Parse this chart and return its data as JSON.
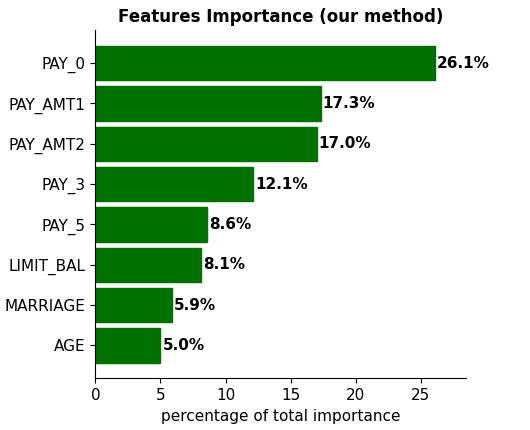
{
  "title": "Features Importance (our method)",
  "xlabel": "percentage of total importance",
  "categories": [
    "AGE",
    "MARRIAGE",
    "LIMIT_BAL",
    "PAY_5",
    "PAY_3",
    "PAY_AMT2",
    "PAY_AMT1",
    "PAY_0"
  ],
  "values": [
    5.0,
    5.9,
    8.1,
    8.6,
    12.1,
    17.0,
    17.3,
    26.1
  ],
  "labels": [
    "5.0%",
    "5.9%",
    "8.1%",
    "8.6%",
    "12.1%",
    "17.0%",
    "17.3%",
    "26.1%"
  ],
  "bar_color": "#007000",
  "title_fontsize": 12,
  "label_fontsize": 11,
  "tick_fontsize": 11,
  "xlabel_fontsize": 11,
  "xlim": [
    0,
    28.5
  ]
}
